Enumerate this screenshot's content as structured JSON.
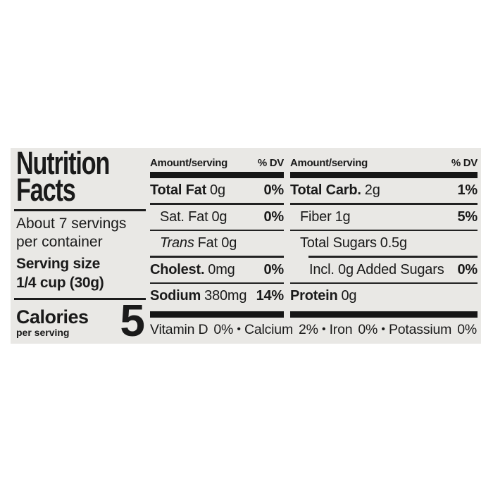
{
  "colors": {
    "page_bg": "#ffffff",
    "label_bg": "#e9e8e5",
    "text": "#1a1a1a",
    "bar": "#161616"
  },
  "title": {
    "line1": "Nutrition",
    "line2": "Facts"
  },
  "servings": {
    "line1": "About 7 servings",
    "line2": "per container"
  },
  "serving_size": {
    "label": "Serving size",
    "value": "1/4 cup (30g)"
  },
  "calories": {
    "label": "Calories",
    "sublabel": "per serving",
    "value": "5"
  },
  "columns": {
    "middle": {
      "header_amount": "Amount/serving",
      "header_dv": "% DV",
      "rows": [
        {
          "name": "Total Fat",
          "amount": "0g",
          "dv": "0%"
        },
        {
          "name": "Sat. Fat",
          "amount": "0g",
          "dv": "0%"
        },
        {
          "name": "Trans",
          "amount": "Fat 0g",
          "dv": ""
        },
        {
          "name": "Cholest.",
          "amount": "0mg",
          "dv": "0%"
        },
        {
          "name": "Sodium",
          "amount": "380mg",
          "dv": "14%"
        }
      ]
    },
    "right": {
      "header_amount": "Amount/serving",
      "header_dv": "% DV",
      "rows": [
        {
          "name": "Total Carb.",
          "amount": "2g",
          "dv": "1%"
        },
        {
          "name": "Fiber",
          "amount": "1g",
          "dv": "5%"
        },
        {
          "name": "Total Sugars",
          "amount": "0.5g",
          "dv": ""
        },
        {
          "name": "Incl. 0g Added Sugars",
          "amount": "",
          "dv": "0%"
        },
        {
          "name": "Protein",
          "amount": "0g",
          "dv": ""
        }
      ]
    }
  },
  "micronutrients": {
    "separator": "•",
    "items": [
      {
        "name": "Vitamin D",
        "dv": "0%"
      },
      {
        "name": "Calcium",
        "dv": "2%"
      },
      {
        "name": "Iron",
        "dv": "0%"
      },
      {
        "name": "Potassium",
        "dv": "0%"
      }
    ]
  }
}
